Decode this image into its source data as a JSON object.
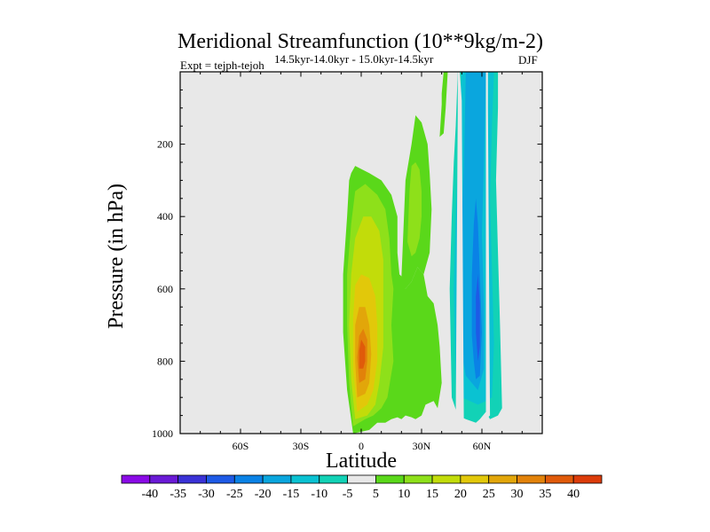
{
  "chart_data": {
    "type": "filled-contour",
    "title": "Meridional Streamfunction (10**9kg/m-2)",
    "subtitle_left": "Expt = tejph-tejoh",
    "subtitle_center": "14.5kyr-14.0kyr - 15.0kyr-14.5kyr",
    "subtitle_right": "DJF",
    "xlabel": "Latitude",
    "ylabel": "Pressure (in hPa)",
    "xlim": [
      -90,
      90
    ],
    "ylim": [
      1000,
      0
    ],
    "xticks": [
      {
        "value": -60,
        "label": "60S"
      },
      {
        "value": -30,
        "label": "30S"
      },
      {
        "value": 0,
        "label": "0"
      },
      {
        "value": 30,
        "label": "30N"
      },
      {
        "value": 60,
        "label": "60N"
      }
    ],
    "yticks": [
      {
        "value": 200,
        "label": "200"
      },
      {
        "value": 400,
        "label": "400"
      },
      {
        "value": 600,
        "label": "600"
      },
      {
        "value": 800,
        "label": "800"
      },
      {
        "value": 1000,
        "label": "1000"
      }
    ],
    "colorbar": {
      "labels": [
        "-40",
        "-35",
        "-30",
        "-25",
        "-20",
        "-15",
        "-10",
        "-5",
        "5",
        "10",
        "15",
        "20",
        "25",
        "30",
        "35",
        "40"
      ],
      "colors": [
        "#8a0ae6",
        "#6a1ad6",
        "#3a32d6",
        "#1e5ae6",
        "#0a82e6",
        "#0aa6de",
        "#0ac2d2",
        "#12d2b6",
        "#e8e8e8",
        "#5ad81a",
        "#8ee01a",
        "#c2dc0a",
        "#e2c80a",
        "#e2a60a",
        "#e2820a",
        "#e05a0a",
        "#dc3c0a"
      ],
      "background_fill": "#e8e8e8"
    },
    "contours": [
      {
        "level": 5,
        "color": "#5ad81a",
        "regions": [
          {
            "pts": [
              [
                -4,
                1000
              ],
              [
                -7,
                880
              ],
              [
                -9,
                720
              ],
              [
                -9,
                560
              ],
              [
                -7,
                400
              ],
              [
                -6,
                300
              ],
              [
                -5,
                280
              ],
              [
                -3,
                260
              ],
              [
                4,
                280
              ],
              [
                10,
                300
              ],
              [
                15,
                340
              ],
              [
                18,
                400
              ],
              [
                18,
                500
              ],
              [
                19,
                560
              ],
              [
                21,
                570
              ],
              [
                22,
                600
              ],
              [
                25,
                580
              ],
              [
                28,
                540
              ],
              [
                31,
                560
              ],
              [
                33,
                620
              ],
              [
                36,
                640
              ],
              [
                38,
                700
              ],
              [
                39,
                760
              ],
              [
                40,
                860
              ],
              [
                38,
                930
              ],
              [
                36,
                910
              ],
              [
                32,
                920
              ],
              [
                30,
                950
              ],
              [
                27,
                960
              ],
              [
                25,
                955
              ],
              [
                22,
                950
              ],
              [
                20,
                960
              ],
              [
                18,
                955
              ],
              [
                15,
                960
              ],
              [
                12,
                970
              ],
              [
                8,
                970
              ],
              [
                4,
                990
              ]
            ]
          },
          {
            "pts": [
              [
                20,
                570
              ],
              [
                22,
                300
              ],
              [
                25,
                200
              ],
              [
                27,
                120
              ],
              [
                30,
                140
              ],
              [
                33,
                200
              ],
              [
                34,
                280
              ],
              [
                35,
                380
              ],
              [
                34,
                500
              ],
              [
                31,
                560
              ],
              [
                28,
                540
              ],
              [
                25,
                580
              ],
              [
                22,
                600
              ]
            ]
          },
          {
            "pts": [
              [
                39,
                180
              ],
              [
                40,
                90
              ],
              [
                40,
                60
              ],
              [
                41,
                0
              ],
              [
                43,
                0
              ],
              [
                42,
                100
              ],
              [
                41,
                170
              ]
            ]
          }
        ]
      },
      {
        "level": 10,
        "color": "#8ee01a",
        "regions": [
          {
            "pts": [
              [
                -4,
                980
              ],
              [
                -6,
                860
              ],
              [
                -7,
                700
              ],
              [
                -7,
                560
              ],
              [
                -5,
                420
              ],
              [
                -3,
                330
              ],
              [
                2,
                310
              ],
              [
                8,
                340
              ],
              [
                12,
                380
              ],
              [
                14,
                460
              ],
              [
                15,
                560
              ],
              [
                16,
                600
              ],
              [
                15,
                700
              ],
              [
                16,
                800
              ],
              [
                13,
                900
              ],
              [
                10,
                930
              ],
              [
                6,
                950
              ],
              [
                2,
                960
              ]
            ]
          },
          {
            "pts": [
              [
                23,
                470
              ],
              [
                24,
                330
              ],
              [
                25,
                260
              ],
              [
                27,
                250
              ],
              [
                29,
                270
              ],
              [
                30,
                330
              ],
              [
                30,
                400
              ],
              [
                29,
                460
              ],
              [
                27,
                500
              ],
              [
                25,
                510
              ]
            ]
          }
        ]
      },
      {
        "level": 15,
        "color": "#c2dc0a",
        "regions": [
          {
            "pts": [
              [
                -3,
                960
              ],
              [
                -5,
                850
              ],
              [
                -6,
                700
              ],
              [
                -5,
                560
              ],
              [
                -3,
                460
              ],
              [
                1,
                400
              ],
              [
                5,
                400
              ],
              [
                9,
                440
              ],
              [
                11,
                520
              ],
              [
                11,
                650
              ],
              [
                11,
                760
              ],
              [
                9,
                860
              ],
              [
                7,
                920
              ],
              [
                3,
                950
              ]
            ]
          }
        ]
      },
      {
        "level": 20,
        "color": "#e2c80a",
        "regions": [
          {
            "pts": [
              [
                -2,
                940
              ],
              [
                -4,
                820
              ],
              [
                -4,
                680
              ],
              [
                -3,
                590
              ],
              [
                0,
                560
              ],
              [
                4,
                570
              ],
              [
                7,
                620
              ],
              [
                8,
                700
              ],
              [
                8,
                800
              ],
              [
                6,
                880
              ],
              [
                3,
                920
              ]
            ]
          }
        ]
      },
      {
        "level": 25,
        "color": "#e2a60a",
        "regions": [
          {
            "pts": [
              [
                -2,
                900
              ],
              [
                -3,
                800
              ],
              [
                -3,
                700
              ],
              [
                -1,
                650
              ],
              [
                2,
                650
              ],
              [
                4,
                700
              ],
              [
                5,
                780
              ],
              [
                4,
                860
              ],
              [
                2,
                890
              ]
            ]
          }
        ]
      },
      {
        "level": 30,
        "color": "#e2820a",
        "regions": [
          {
            "pts": [
              [
                -1,
                860
              ],
              [
                -2,
                790
              ],
              [
                -1,
                730
              ],
              [
                1,
                710
              ],
              [
                3,
                740
              ],
              [
                3,
                800
              ],
              [
                2,
                850
              ]
            ]
          }
        ]
      },
      {
        "level": 35,
        "color": "#e05a0a",
        "regions": [
          {
            "pts": [
              [
                -1,
                820
              ],
              [
                -1,
                770
              ],
              [
                0,
                740
              ],
              [
                2,
                760
              ],
              [
                2,
                800
              ],
              [
                1,
                820
              ]
            ]
          }
        ]
      },
      {
        "level": -5,
        "color": "#12d2b6",
        "regions": [
          {
            "pts": [
              [
                45,
                900
              ],
              [
                44,
                600
              ],
              [
                45,
                400
              ],
              [
                46,
                250
              ],
              [
                47,
                150
              ],
              [
                48,
                0
              ],
              [
                68,
                0
              ],
              [
                68,
                100
              ],
              [
                67,
                300
              ],
              [
                68,
                500
              ],
              [
                69,
                700
              ],
              [
                70,
                930
              ],
              [
                68,
                950
              ],
              [
                64,
                960
              ],
              [
                62,
                940
              ],
              [
                59,
                960
              ],
              [
                57,
                970
              ],
              [
                52,
                960
              ],
              [
                48,
                950
              ]
            ]
          }
        ]
      },
      {
        "level": -10,
        "color": "#0ac2d2",
        "regions": [
          {
            "pts": [
              [
                47,
                860
              ],
              [
                46,
                600
              ],
              [
                47,
                400
              ],
              [
                48,
                250
              ],
              [
                49,
                100
              ],
              [
                50,
                0
              ],
              [
                66,
                0
              ],
              [
                65,
                150
              ],
              [
                64,
                350
              ],
              [
                65,
                550
              ],
              [
                66,
                750
              ],
              [
                65,
                900
              ],
              [
                62,
                910
              ],
              [
                58,
                920
              ],
              [
                54,
                910
              ],
              [
                50,
                900
              ]
            ]
          }
        ]
      },
      {
        "level": -15,
        "color": "#0aa6de",
        "regions": [
          {
            "pts": [
              [
                50,
                780
              ],
              [
                49,
                600
              ],
              [
                50,
                420
              ],
              [
                51,
                260
              ],
              [
                52,
                0
              ],
              [
                62,
                0
              ],
              [
                61,
                250
              ],
              [
                60,
                450
              ],
              [
                61,
                650
              ],
              [
                61,
                820
              ],
              [
                58,
                880
              ],
              [
                55,
                860
              ],
              [
                52,
                840
              ]
            ]
          }
        ]
      },
      {
        "level": -20,
        "color": "#0a82e6",
        "regions": [
          {
            "pts": [
              [
                55,
                730
              ],
              [
                55,
                560
              ],
              [
                56,
                420
              ],
              [
                57,
                350
              ],
              [
                58,
                420
              ],
              [
                59,
                560
              ],
              [
                60,
                720
              ],
              [
                59,
                840
              ],
              [
                57,
                850
              ],
              [
                56,
                800
              ]
            ]
          }
        ]
      },
      {
        "level": -25,
        "color": "#1e5ae6",
        "regions": [
          {
            "pts": [
              [
                57,
                720
              ],
              [
                57,
                620
              ],
              [
                58,
                560
              ],
              [
                59,
                640
              ],
              [
                59,
                760
              ],
              [
                58,
                800
              ]
            ]
          }
        ]
      },
      {
        "level": 0,
        "color": "#e8e8e8",
        "regions": [
          {
            "pts": [
              [
                47,
                960
              ],
              [
                51,
                960
              ],
              [
                50,
                80
              ],
              [
                49,
                0
              ],
              [
                48,
                0
              ],
              [
                48,
                100
              ]
            ]
          },
          {
            "pts": [
              [
                62,
                960
              ],
              [
                64,
                950
              ],
              [
                63,
                100
              ],
              [
                63,
                0
              ],
              [
                62,
                0
              ],
              [
                62,
                150
              ]
            ]
          }
        ]
      }
    ]
  }
}
